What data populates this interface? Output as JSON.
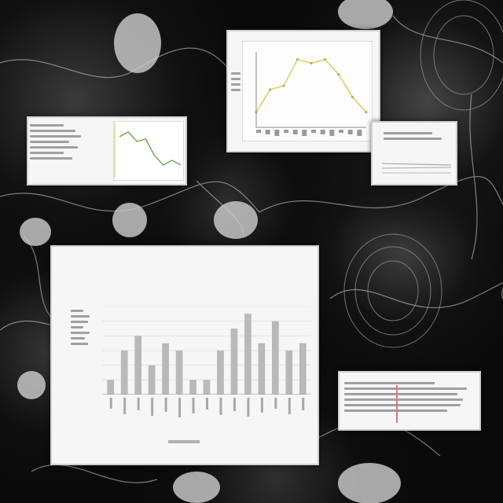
{
  "background": {
    "theme": "monochrome neuron network",
    "accent_green": "#6aa84f",
    "accent_yellow": "#d8d36a",
    "accent_red": "#d87a7a"
  },
  "panels": {
    "top_left_text": [
      "",
      "",
      "",
      ""
    ],
    "top_center": {
      "title": "",
      "labels": "",
      "line_color": "#d8d36a"
    },
    "left_small": {
      "line_color": "#6aa84f"
    },
    "right_small": {
      "labels": ""
    },
    "main": {
      "title_line1": "",
      "title_line2": "",
      "title_line3": "",
      "ylabel": "",
      "xlabel": "",
      "bar_color": "#b9b9b9"
    },
    "bottom_right": {
      "line_color": "#d87a7a"
    }
  },
  "chart_data": [
    {
      "type": "bar",
      "categories": [
        "",
        "",
        "",
        "",
        "",
        "",
        "",
        "",
        "",
        "",
        "",
        "",
        "",
        "",
        ""
      ],
      "values": [
        2,
        6,
        8,
        4,
        7,
        6,
        2,
        2,
        6,
        9,
        11,
        7,
        10,
        6,
        7
      ],
      "title": "",
      "xlabel": "",
      "ylabel": "",
      "ylim": [
        0,
        12
      ]
    },
    {
      "type": "line",
      "x": [
        1,
        2,
        3,
        4,
        5,
        6,
        7,
        8,
        9
      ],
      "values": [
        2,
        5,
        5.5,
        9,
        8.5,
        9,
        7,
        4,
        2
      ],
      "title": "",
      "xlabel": "",
      "ylabel": "",
      "ylim": [
        0,
        10
      ]
    },
    {
      "type": "line",
      "x": [
        1,
        2,
        3,
        4,
        5,
        6,
        7,
        8
      ],
      "values": [
        8,
        9,
        7,
        7.5,
        4,
        2,
        3,
        2
      ],
      "title": "",
      "xlabel": "",
      "ylabel": "",
      "ylim": [
        0,
        10
      ]
    }
  ]
}
